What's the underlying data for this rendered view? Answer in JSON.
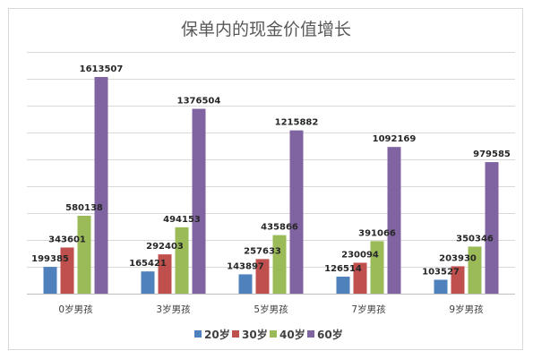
{
  "chart_data": {
    "type": "bar",
    "title": "保单内的现金价值增长",
    "categories": [
      "0岁男孩",
      "3岁男孩",
      "5岁男孩",
      "7岁男孩",
      "9岁男孩"
    ],
    "series": [
      {
        "name": "20岁",
        "color": "#4f81bd",
        "values": [
          199385,
          165421,
          143897,
          126514,
          103527
        ]
      },
      {
        "name": "30岁",
        "color": "#c0504d",
        "values": [
          343601,
          292403,
          257633,
          230094,
          203930
        ]
      },
      {
        "name": "40岁",
        "color": "#9bbb59",
        "values": [
          580138,
          494153,
          435866,
          391066,
          350346
        ]
      },
      {
        "name": "60岁",
        "color": "#8064a2",
        "values": [
          1613507,
          1376504,
          1215882,
          1092169,
          979585
        ]
      }
    ],
    "ylim": [
      0,
      1800000
    ],
    "grid": true,
    "y_tick_labels_shown": false,
    "legend_position": "bottom",
    "data_labels": true
  }
}
